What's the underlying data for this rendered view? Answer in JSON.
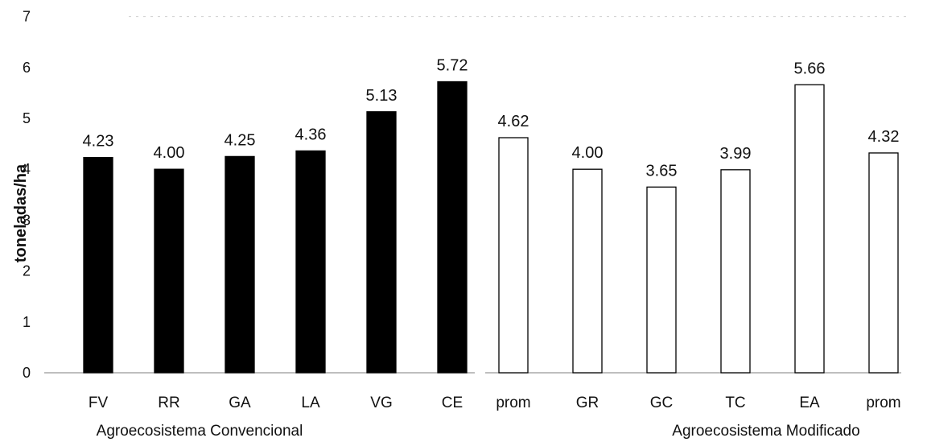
{
  "chart_data": {
    "type": "bar",
    "ylabel": "toneladas/ha",
    "ylim": [
      0,
      7
    ],
    "yticks": [
      "0",
      "1",
      "2",
      "3",
      "4",
      "5",
      "6",
      "7"
    ],
    "groups": [
      {
        "name": "Agroecosistema Convencional",
        "fill": "#000000",
        "categories": [
          "FV",
          "RR",
          "GA",
          "LA",
          "VG",
          "CE"
        ],
        "values": [
          4.23,
          4.0,
          4.25,
          4.36,
          5.13,
          5.72
        ],
        "labels": [
          "4.23",
          "4.00",
          "4.25",
          "4.36",
          "5.13",
          "5.72"
        ]
      },
      {
        "name": "Agroecosistema Modificado",
        "fill": "#ffffff",
        "categories": [
          "prom",
          "GR",
          "GC",
          "TC",
          "EA",
          "prom"
        ],
        "values": [
          4.62,
          4.0,
          3.65,
          3.99,
          5.66,
          4.32
        ],
        "labels": [
          "4.62",
          "4.00",
          "3.65",
          "3.99",
          "5.66",
          "4.32"
        ]
      }
    ],
    "colors": {
      "convencional": "#000000",
      "modificado": "#ffffff",
      "outline": "#000000"
    }
  }
}
